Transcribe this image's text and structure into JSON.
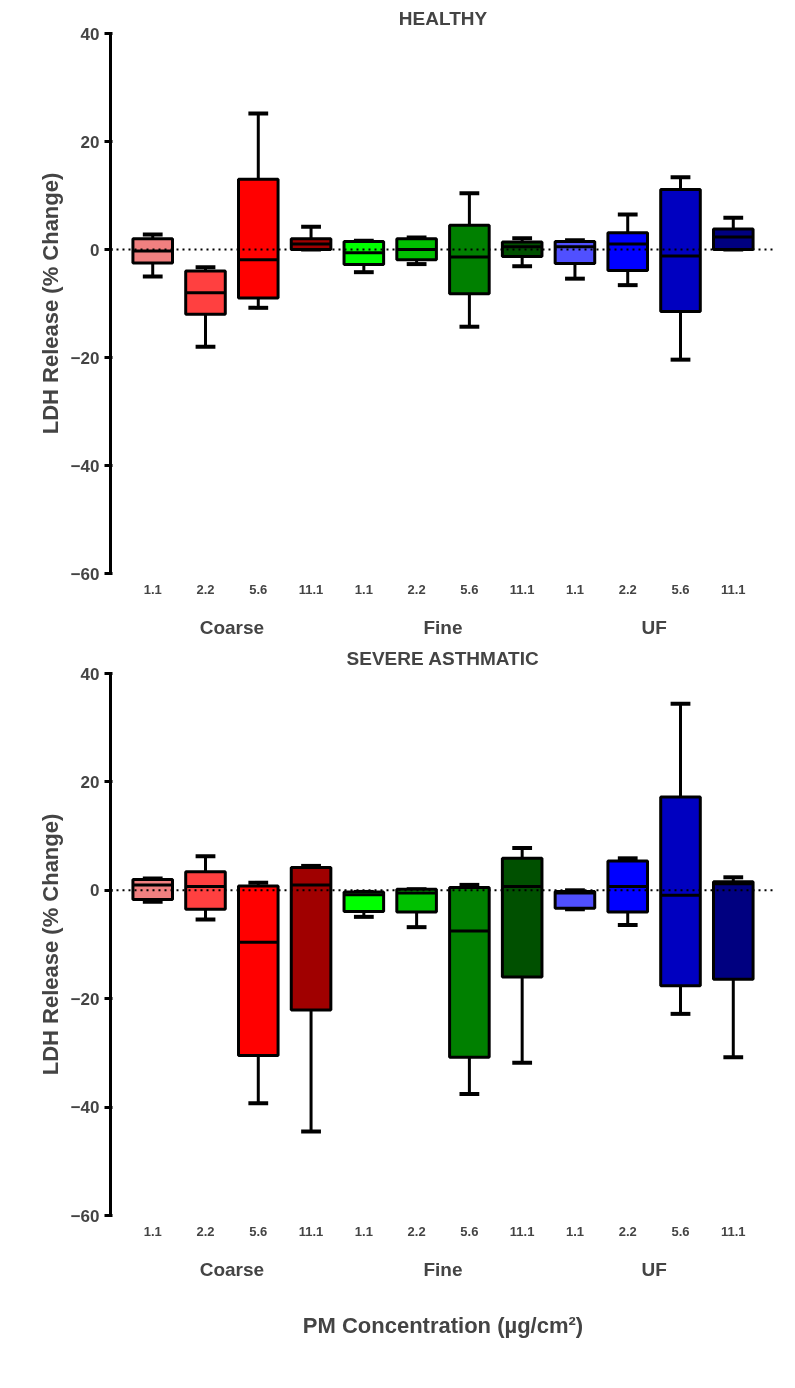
{
  "chart_data": [
    {
      "type": "box",
      "title": "HEALTHY",
      "ylabel": "LDH Release (% Change)",
      "categories": [
        "1.1",
        "2.2",
        "5.6",
        "11.1",
        "1.1",
        "2.2",
        "5.6",
        "11.1",
        "1.1",
        "2.2",
        "5.6",
        "11.1"
      ],
      "colors": [
        "#f08080",
        "#ff4040",
        "#ff0000",
        "#a00000",
        "#00ff00",
        "#00c000",
        "#008000",
        "#005000",
        "#5050ff",
        "#0000ff",
        "#0000c0",
        "#000080"
      ],
      "boxes": [
        {
          "low": -5,
          "q1": -2.5,
          "median": -0.3,
          "q3": 2,
          "high": 2.8
        },
        {
          "low": -18,
          "q1": -12,
          "median": -8,
          "q3": -4,
          "high": -3.3
        },
        {
          "low": -10.8,
          "q1": -9,
          "median": -1.9,
          "q3": 13,
          "high": 25.2
        },
        {
          "low": 0,
          "q1": 0,
          "median": 1,
          "q3": 2,
          "high": 4.2
        },
        {
          "low": -4.2,
          "q1": -2.8,
          "median": -0.6,
          "q3": 1.5,
          "high": 1.6
        },
        {
          "low": -2.7,
          "q1": -1.9,
          "median": 0,
          "q3": 2,
          "high": 2.2
        },
        {
          "low": -14.3,
          "q1": -8.2,
          "median": -1.4,
          "q3": 4.5,
          "high": 10.4
        },
        {
          "low": -3.1,
          "q1": -1.3,
          "median": 0.5,
          "q3": 1.4,
          "high": 2.1
        },
        {
          "low": -5.4,
          "q1": -2.6,
          "median": 0.5,
          "q3": 1.5,
          "high": 1.7
        },
        {
          "low": -6.6,
          "q1": -3.9,
          "median": 1,
          "q3": 3.1,
          "high": 6.5
        },
        {
          "low": -20.4,
          "q1": -11.5,
          "median": -1.2,
          "q3": 11.1,
          "high": 13.4
        },
        {
          "low": 0,
          "q1": 0,
          "median": 2.3,
          "q3": 3.8,
          "high": 5.9
        }
      ],
      "ylim": [
        -60,
        40
      ],
      "yticks": [
        -60,
        -40,
        -20,
        0,
        20,
        40
      ],
      "ref_lines": [
        {
          "axis": "y",
          "value": 0,
          "label": null,
          "line_style": "dotted"
        }
      ],
      "annotations": [
        "Coarse",
        "Fine",
        "UF"
      ],
      "grid": false
    },
    {
      "type": "box",
      "title": "SEVERE ASTHMATIC",
      "ylabel": "LDH Release (% Change)",
      "xlabel": "PM Concentration (µg/cm²)",
      "categories": [
        "1.1",
        "2.2",
        "5.6",
        "11.1",
        "1.1",
        "2.2",
        "5.6",
        "11.1",
        "1.1",
        "2.2",
        "5.6",
        "11.1"
      ],
      "colors": [
        "#f08080",
        "#ff4040",
        "#ff0000",
        "#a00000",
        "#00ff00",
        "#00c000",
        "#008000",
        "#005000",
        "#5050ff",
        "#0000ff",
        "#0000c0",
        "#000080"
      ],
      "boxes": [
        {
          "low": -2.1,
          "q1": -1.7,
          "median": 1,
          "q3": 2,
          "high": 2.2
        },
        {
          "low": -5.4,
          "q1": -3.5,
          "median": 0.7,
          "q3": 3.4,
          "high": 6.3
        },
        {
          "low": -39.3,
          "q1": -30.5,
          "median": -9.6,
          "q3": 0.8,
          "high": 1.4
        },
        {
          "low": -44.5,
          "q1": -22.1,
          "median": 1,
          "q3": 4.2,
          "high": 4.5
        },
        {
          "low": -4.9,
          "q1": -3.9,
          "median": -0.8,
          "q3": -0.3,
          "high": -0.3
        },
        {
          "low": -6.8,
          "q1": -4,
          "median": -0.5,
          "q3": 0.2,
          "high": 0.2
        },
        {
          "low": -37.6,
          "q1": -30.8,
          "median": -7.5,
          "q3": 0.5,
          "high": 1
        },
        {
          "low": -31.8,
          "q1": -16,
          "median": 0.7,
          "q3": 5.9,
          "high": 7.8
        },
        {
          "low": -3.5,
          "q1": -3.3,
          "median": -0.5,
          "q3": -0.2,
          "high": 0
        },
        {
          "low": -6.4,
          "q1": -4,
          "median": 0.7,
          "q3": 5.4,
          "high": 5.9
        },
        {
          "low": -22.8,
          "q1": -17.6,
          "median": -0.9,
          "q3": 17.2,
          "high": 34.4
        },
        {
          "low": -30.8,
          "q1": -16.4,
          "median": 1.2,
          "q3": 1.6,
          "high": 2.4
        }
      ],
      "ylim": [
        -60,
        40
      ],
      "yticks": [
        -60,
        -40,
        -20,
        0,
        20,
        40
      ],
      "ref_lines": [
        {
          "axis": "y",
          "value": 0,
          "label": null,
          "line_style": "dotted"
        }
      ],
      "annotations": [
        "Coarse",
        "Fine",
        "UF"
      ],
      "grid": false
    }
  ]
}
